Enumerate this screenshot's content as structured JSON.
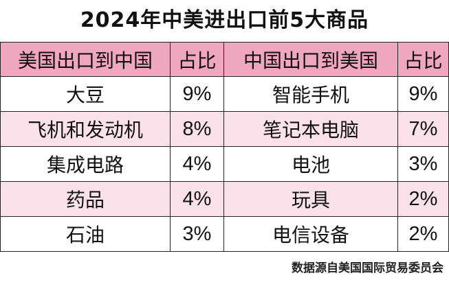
{
  "title": "2024年中美进出口前5大商品",
  "headers": [
    "美国出口到中国",
    "占比",
    "中国出口到美国",
    "占比"
  ],
  "rows": [
    [
      "大豆",
      "9%",
      "智能手机",
      "9%"
    ],
    [
      "飞机和发动机",
      "8%",
      "笔记本电脑",
      "7%"
    ],
    [
      "集成电路",
      "4%",
      "电池",
      "3%"
    ],
    [
      "药品",
      "4%",
      "玩具",
      "2%"
    ],
    [
      "石油",
      "3%",
      "电信设备",
      "2%"
    ]
  ],
  "footer": "数据源自美国国际贸易委员会",
  "colors": {
    "header_bg": "#f0a6be",
    "alt_row_bg": "#fbe2ea"
  }
}
